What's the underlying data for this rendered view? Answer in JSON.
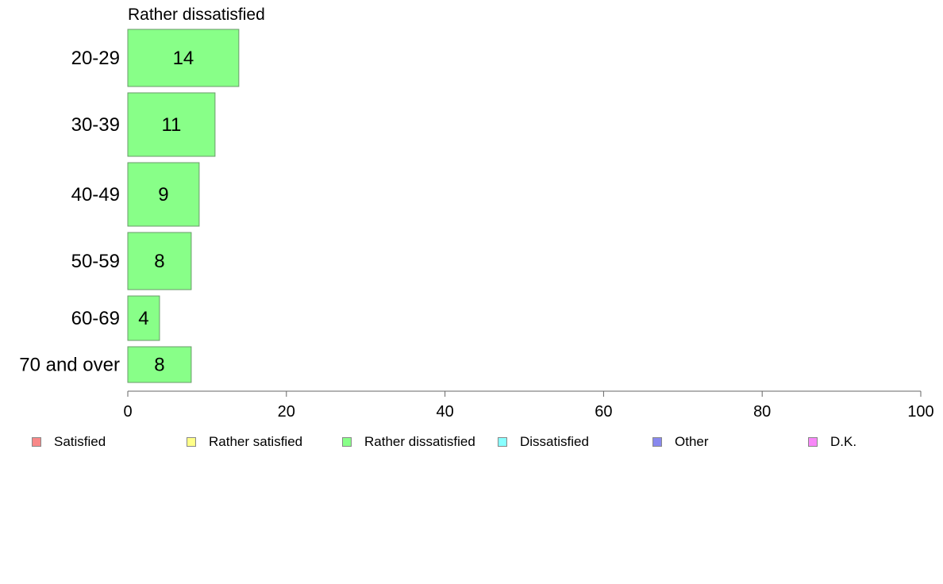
{
  "chart_data": {
    "type": "bar",
    "orientation": "horizontal",
    "title": "Rather dissatisfied",
    "categories": [
      "20-29",
      "30-39",
      "40-49",
      "50-59",
      "60-69",
      "70 and over"
    ],
    "series": [
      {
        "name": "Rather dissatisfied",
        "values": [
          14,
          11,
          9,
          8,
          4,
          8
        ],
        "color": "#88ff88"
      }
    ],
    "xlim": [
      0,
      100
    ],
    "xticks": [
      "0",
      "20",
      "40",
      "60",
      "80",
      "100"
    ],
    "grid": false,
    "legend": {
      "placement": "bottom",
      "items": [
        {
          "label": "Satisfied",
          "color": "#f88888"
        },
        {
          "label": "Rather satisfied",
          "color": "#ffff88"
        },
        {
          "label": "Rather dissatisfied",
          "color": "#88ff88"
        },
        {
          "label": "Dissatisfied",
          "color": "#88ffff"
        },
        {
          "label": "Other",
          "color": "#8888ee"
        },
        {
          "label": "D.K.",
          "color": "#f888f8"
        }
      ]
    }
  }
}
